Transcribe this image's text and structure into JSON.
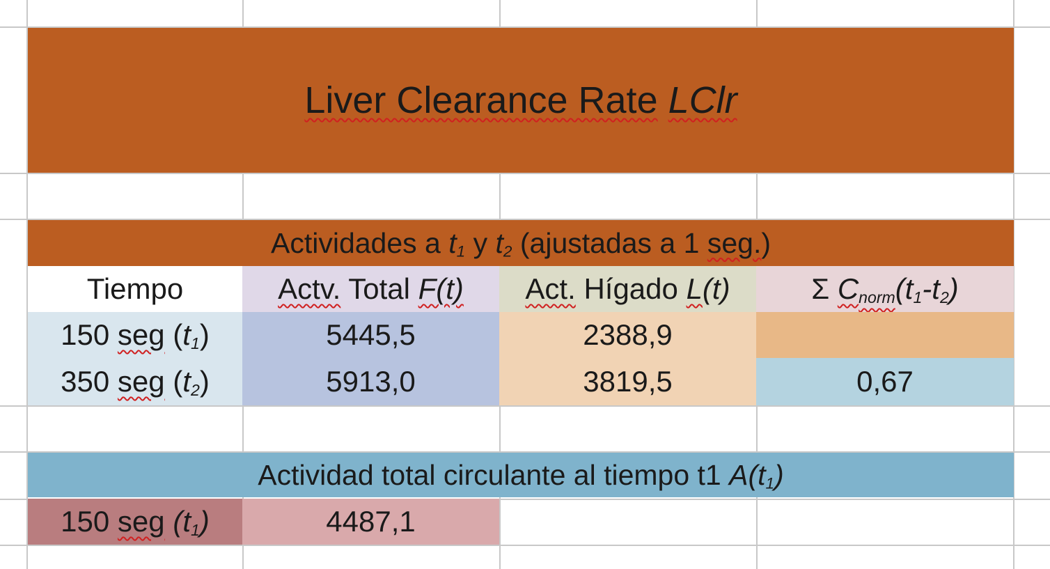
{
  "title": {
    "text": "Liver Clearance Rate",
    "symbol": "LClr"
  },
  "section1": {
    "prefix": "Actividades a",
    "t1_var": "t",
    "t1_sub": "1",
    "conj": "y",
    "t2_var": "t",
    "t2_sub": "2",
    "suffix_open": "(ajustadas a 1",
    "suffix_seg": "seg.",
    "suffix_close": ")"
  },
  "table": {
    "headers": {
      "tiempo": "Tiempo",
      "total_label": "Actv.",
      "total_word": "Total",
      "total_fn": "F(t)",
      "higado_label": "Act.",
      "higado_word": "Hígado",
      "higado_fn_l": "L",
      "higado_fn_rest": "(t)",
      "sigma": "Σ",
      "c_var": "C",
      "c_sub": "norm",
      "c_args_open": "(t",
      "c_args_sub1": "1",
      "c_args_mid": "-t",
      "c_args_sub2": "2",
      "c_args_close": ")"
    },
    "rows": [
      {
        "time_num": "150",
        "time_seg": "seg",
        "time_var": "t",
        "time_sub": "1",
        "total": "5445,5",
        "higado": "2388,9",
        "cnorm": ""
      },
      {
        "time_num": "350",
        "time_seg": "seg",
        "time_var": "t",
        "time_sub": "2",
        "total": "5913,0",
        "higado": "3819,5",
        "cnorm": "0,67"
      }
    ]
  },
  "section2": {
    "text": "Actividad total circulante al tiempo t1",
    "fn_var": "A(t",
    "fn_sub": "1",
    "fn_close": ")"
  },
  "circ_row": {
    "time_num": "150",
    "time_seg": "seg",
    "time_var": "t",
    "time_sub": "1",
    "value": "4487,1"
  },
  "colors": {
    "orange_band": "#bb5d21",
    "blue_band": "#7fb3cc",
    "time_col": "#d9e6ee",
    "total_col": "#b7c3df",
    "higado_col": "#f1d3b4",
    "sigma_head": "#e8d5d8",
    "cnorm_top": "#e8b887",
    "cnorm_bottom": "#b4d3e0",
    "circ_time": "#b97d7f",
    "circ_value": "#d9a9ab"
  }
}
